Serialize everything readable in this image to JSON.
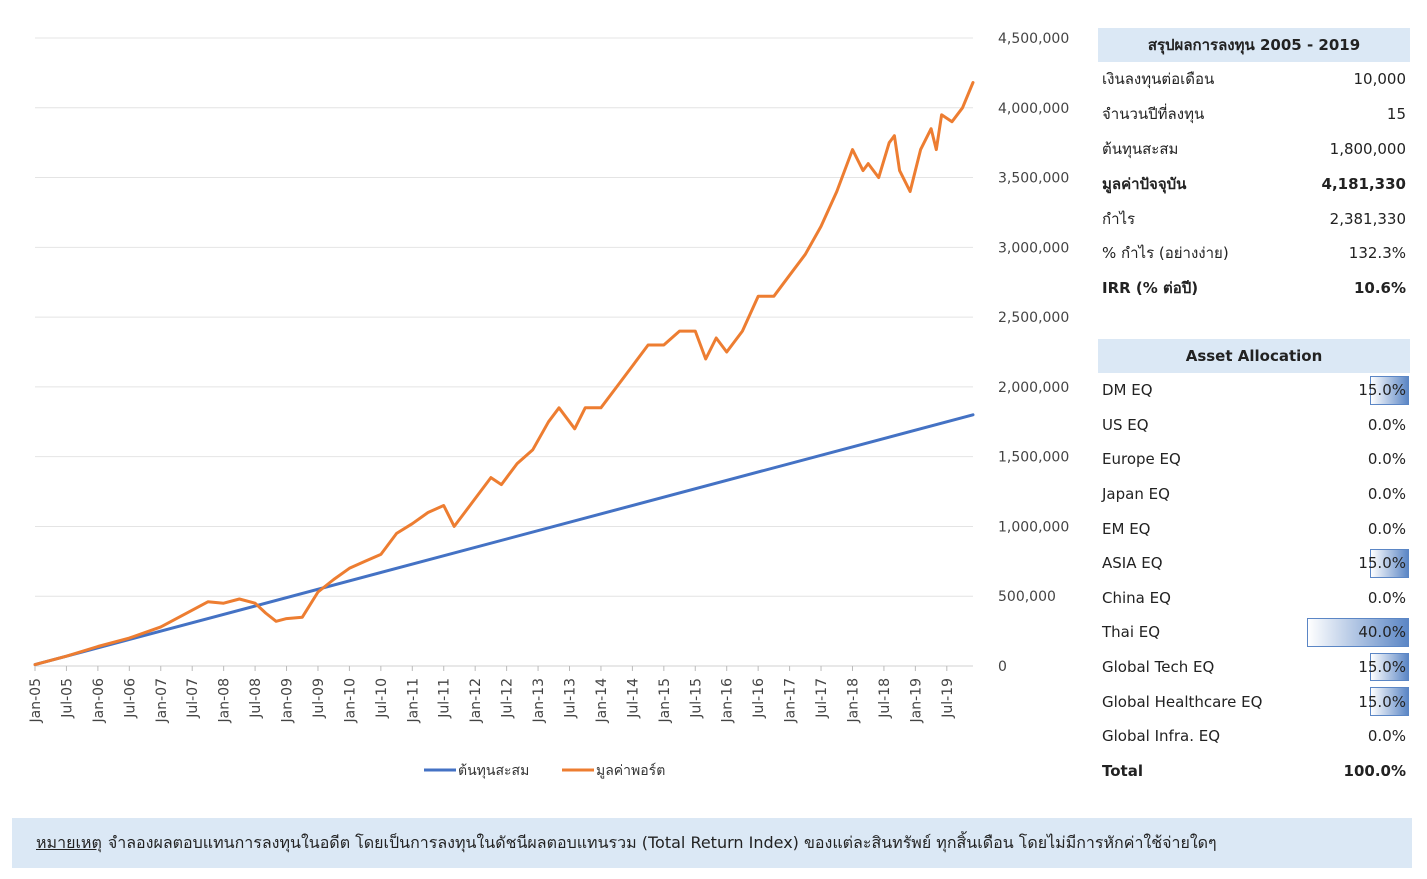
{
  "chart_data": {
    "type": "line",
    "x_tick_labels": [
      "Jan-05",
      "Jul-05",
      "Jan-06",
      "Jul-06",
      "Jan-07",
      "Jul-07",
      "Jan-08",
      "Jul-08",
      "Jan-09",
      "Jul-09",
      "Jan-10",
      "Jul-10",
      "Jan-11",
      "Jul-11",
      "Jan-12",
      "Jul-12",
      "Jan-13",
      "Jul-13",
      "Jan-14",
      "Jul-14",
      "Jan-15",
      "Jul-15",
      "Jan-16",
      "Jul-16",
      "Jan-17",
      "Jul-17",
      "Jan-18",
      "Jul-18",
      "Jan-19",
      "Jul-19"
    ],
    "y_ticks": [
      "0",
      "500,000",
      "1,000,000",
      "1,500,000",
      "2,000,000",
      "2,500,000",
      "3,000,000",
      "3,500,000",
      "4,000,000",
      "4,500,000"
    ],
    "ylim": [
      0,
      4500000
    ],
    "grid": true,
    "legend_position": "bottom",
    "series": [
      {
        "name": "ต้นทุนสะสม",
        "color": "#4472c4",
        "points": [
          [
            "Jan-05",
            10000
          ],
          [
            "Dec-19",
            1800000
          ]
        ]
      },
      {
        "name": "มูลค่าพอร์ต",
        "color": "#ed7d31",
        "points": [
          [
            "Jan-05",
            10000
          ],
          [
            "Jul-05",
            70000
          ],
          [
            "Jan-06",
            140000
          ],
          [
            "Jul-06",
            200000
          ],
          [
            "Jan-07",
            280000
          ],
          [
            "Jul-07",
            400000
          ],
          [
            "Oct-07",
            460000
          ],
          [
            "Jan-08",
            450000
          ],
          [
            "Apr-08",
            480000
          ],
          [
            "Jul-08",
            450000
          ],
          [
            "Sep-08",
            380000
          ],
          [
            "Nov-08",
            320000
          ],
          [
            "Jan-09",
            340000
          ],
          [
            "Apr-09",
            350000
          ],
          [
            "Jul-09",
            530000
          ],
          [
            "Oct-09",
            620000
          ],
          [
            "Jan-10",
            700000
          ],
          [
            "Apr-10",
            750000
          ],
          [
            "Jul-10",
            800000
          ],
          [
            "Oct-10",
            950000
          ],
          [
            "Jan-11",
            1020000
          ],
          [
            "Apr-11",
            1100000
          ],
          [
            "Jul-11",
            1150000
          ],
          [
            "Sep-11",
            1000000
          ],
          [
            "Nov-11",
            1100000
          ],
          [
            "Jan-12",
            1200000
          ],
          [
            "Apr-12",
            1350000
          ],
          [
            "Jun-12",
            1300000
          ],
          [
            "Sep-12",
            1450000
          ],
          [
            "Dec-12",
            1550000
          ],
          [
            "Mar-13",
            1750000
          ],
          [
            "May-13",
            1850000
          ],
          [
            "Jul-13",
            1750000
          ],
          [
            "Aug-13",
            1700000
          ],
          [
            "Oct-13",
            1850000
          ],
          [
            "Jan-14",
            1850000
          ],
          [
            "Apr-14",
            2000000
          ],
          [
            "Jul-14",
            2150000
          ],
          [
            "Oct-14",
            2300000
          ],
          [
            "Jan-15",
            2300000
          ],
          [
            "Apr-15",
            2400000
          ],
          [
            "Jul-15",
            2400000
          ],
          [
            "Sep-15",
            2200000
          ],
          [
            "Nov-15",
            2350000
          ],
          [
            "Jan-16",
            2250000
          ],
          [
            "Apr-16",
            2400000
          ],
          [
            "Jul-16",
            2650000
          ],
          [
            "Oct-16",
            2650000
          ],
          [
            "Jan-17",
            2800000
          ],
          [
            "Apr-17",
            2950000
          ],
          [
            "Jul-17",
            3150000
          ],
          [
            "Oct-17",
            3400000
          ],
          [
            "Jan-18",
            3700000
          ],
          [
            "Mar-18",
            3550000
          ],
          [
            "Apr-18",
            3600000
          ],
          [
            "Jun-18",
            3500000
          ],
          [
            "Aug-18",
            3750000
          ],
          [
            "Sep-18",
            3800000
          ],
          [
            "Oct-18",
            3550000
          ],
          [
            "Dec-18",
            3400000
          ],
          [
            "Feb-19",
            3700000
          ],
          [
            "Apr-19",
            3850000
          ],
          [
            "May-19",
            3700000
          ],
          [
            "Jun-19",
            3950000
          ],
          [
            "Aug-19",
            3900000
          ],
          [
            "Oct-19",
            4000000
          ],
          [
            "Dec-19",
            4181330
          ]
        ]
      }
    ]
  },
  "summary": {
    "title": "สรุปผลการลงทุน 2005 - 2019",
    "rows": [
      {
        "label": "เงินลงทุนต่อเดือน",
        "value": "10,000"
      },
      {
        "label": "จำนวนปีที่ลงทุน",
        "value": "15"
      },
      {
        "label": "ต้นทุนสะสม",
        "value": "1,800,000"
      },
      {
        "label": "มูลค่าปัจจุบัน",
        "value": "4,181,330"
      },
      {
        "label": "กำไร",
        "value": "2,381,330"
      },
      {
        "label": "% กำไร (อย่างง่าย)",
        "value": "132.3%"
      },
      {
        "label": "IRR (% ต่อปี)",
        "value": "10.6%"
      }
    ]
  },
  "allocation": {
    "title": "Asset Allocation",
    "rows": [
      {
        "label": "DM EQ",
        "value": "15.0%",
        "weight": 0.15
      },
      {
        "label": "US EQ",
        "value": "0.0%",
        "weight": 0
      },
      {
        "label": "Europe EQ",
        "value": "0.0%",
        "weight": 0
      },
      {
        "label": "Japan EQ",
        "value": "0.0%",
        "weight": 0
      },
      {
        "label": "EM EQ",
        "value": "0.0%",
        "weight": 0
      },
      {
        "label": "ASIA EQ",
        "value": "15.0%",
        "weight": 0.15
      },
      {
        "label": "China EQ",
        "value": "0.0%",
        "weight": 0
      },
      {
        "label": "Thai EQ",
        "value": "40.0%",
        "weight": 0.4
      },
      {
        "label": "Global Tech EQ",
        "value": "15.0%",
        "weight": 0.15
      },
      {
        "label": "Global Healthcare EQ",
        "value": "15.0%",
        "weight": 0.15
      },
      {
        "label": "Global Infra. EQ",
        "value": "0.0%",
        "weight": 0
      }
    ],
    "total_label": "Total",
    "total_value": "100.0%"
  },
  "note": {
    "label": "หมายเหตุ",
    "text": "จำลองผลตอบแทนการลงทุนในอดีต โดยเป็นการลงทุนในดัชนีผลตอบแทนรวม (Total Return Index) ของแต่ละสินทรัพย์ ทุกสิ้นเดือน โดยไม่มีการหักค่าใช้จ่ายใดๆ"
  }
}
